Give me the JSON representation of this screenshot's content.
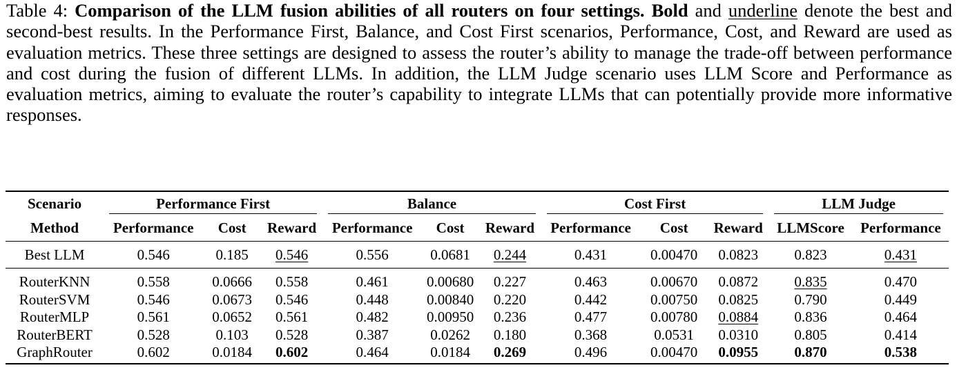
{
  "caption": {
    "table_label": "Table 4:",
    "title_bold": "Comparison of the LLM fusion abilities of all routers on four settings.",
    "bold_word": "Bold",
    "and_word": "and",
    "underline_word": "underline",
    "rest": "denote the best and second-best results. In the Performance First, Balance, and Cost First scenarios, Performance, Cost, and Reward are used as evaluation metrics. These three settings are designed to assess the router’s ability to manage the trade-off between performance and cost during the fusion of different LLMs. In addition, the LLM Judge scenario uses LLM Score and Performance as evaluation metrics, aiming to evaluate the router’s capability to integrate LLMs that can potentially provide more informative responses."
  },
  "table": {
    "scenario_header": "Scenario",
    "method_header": "Method",
    "groups": [
      "Performance First",
      "Balance",
      "Cost First",
      "LLM Judge"
    ],
    "metrics": [
      "Performance",
      "Cost",
      "Reward",
      "Performance",
      "Cost",
      "Reward",
      "Performance",
      "Cost",
      "Reward",
      "LLMScore",
      "Performance"
    ],
    "best_llm": {
      "method": "Best LLM",
      "values": [
        "0.546",
        "0.185",
        "0.546",
        "0.556",
        "0.0681",
        "0.244",
        "0.431",
        "0.00470",
        "0.0823",
        "0.823",
        "0.431"
      ]
    },
    "rows": [
      {
        "method": "RouterKNN",
        "values": [
          "0.558",
          "0.0666",
          "0.558",
          "0.461",
          "0.00680",
          "0.227",
          "0.463",
          "0.00670",
          "0.0872",
          "0.835",
          "0.470"
        ]
      },
      {
        "method": "RouterSVM",
        "values": [
          "0.546",
          "0.0673",
          "0.546",
          "0.448",
          "0.00840",
          "0.220",
          "0.442",
          "0.00750",
          "0.0825",
          "0.790",
          "0.449"
        ]
      },
      {
        "method": "RouterMLP",
        "values": [
          "0.561",
          "0.0652",
          "0.561",
          "0.482",
          "0.00950",
          "0.236",
          "0.477",
          "0.00780",
          "0.0884",
          "0.836",
          "0.464"
        ]
      },
      {
        "method": "RouterBERT",
        "values": [
          "0.528",
          "0.103",
          "0.528",
          "0.387",
          "0.0262",
          "0.180",
          "0.368",
          "0.0531",
          "0.0310",
          "0.805",
          "0.414"
        ]
      },
      {
        "method": "GraphRouter",
        "values": [
          "0.602",
          "0.0184",
          "0.602",
          "0.464",
          "0.0184",
          "0.269",
          "0.496",
          "0.00470",
          "0.0955",
          "0.870",
          "0.538"
        ]
      }
    ]
  }
}
